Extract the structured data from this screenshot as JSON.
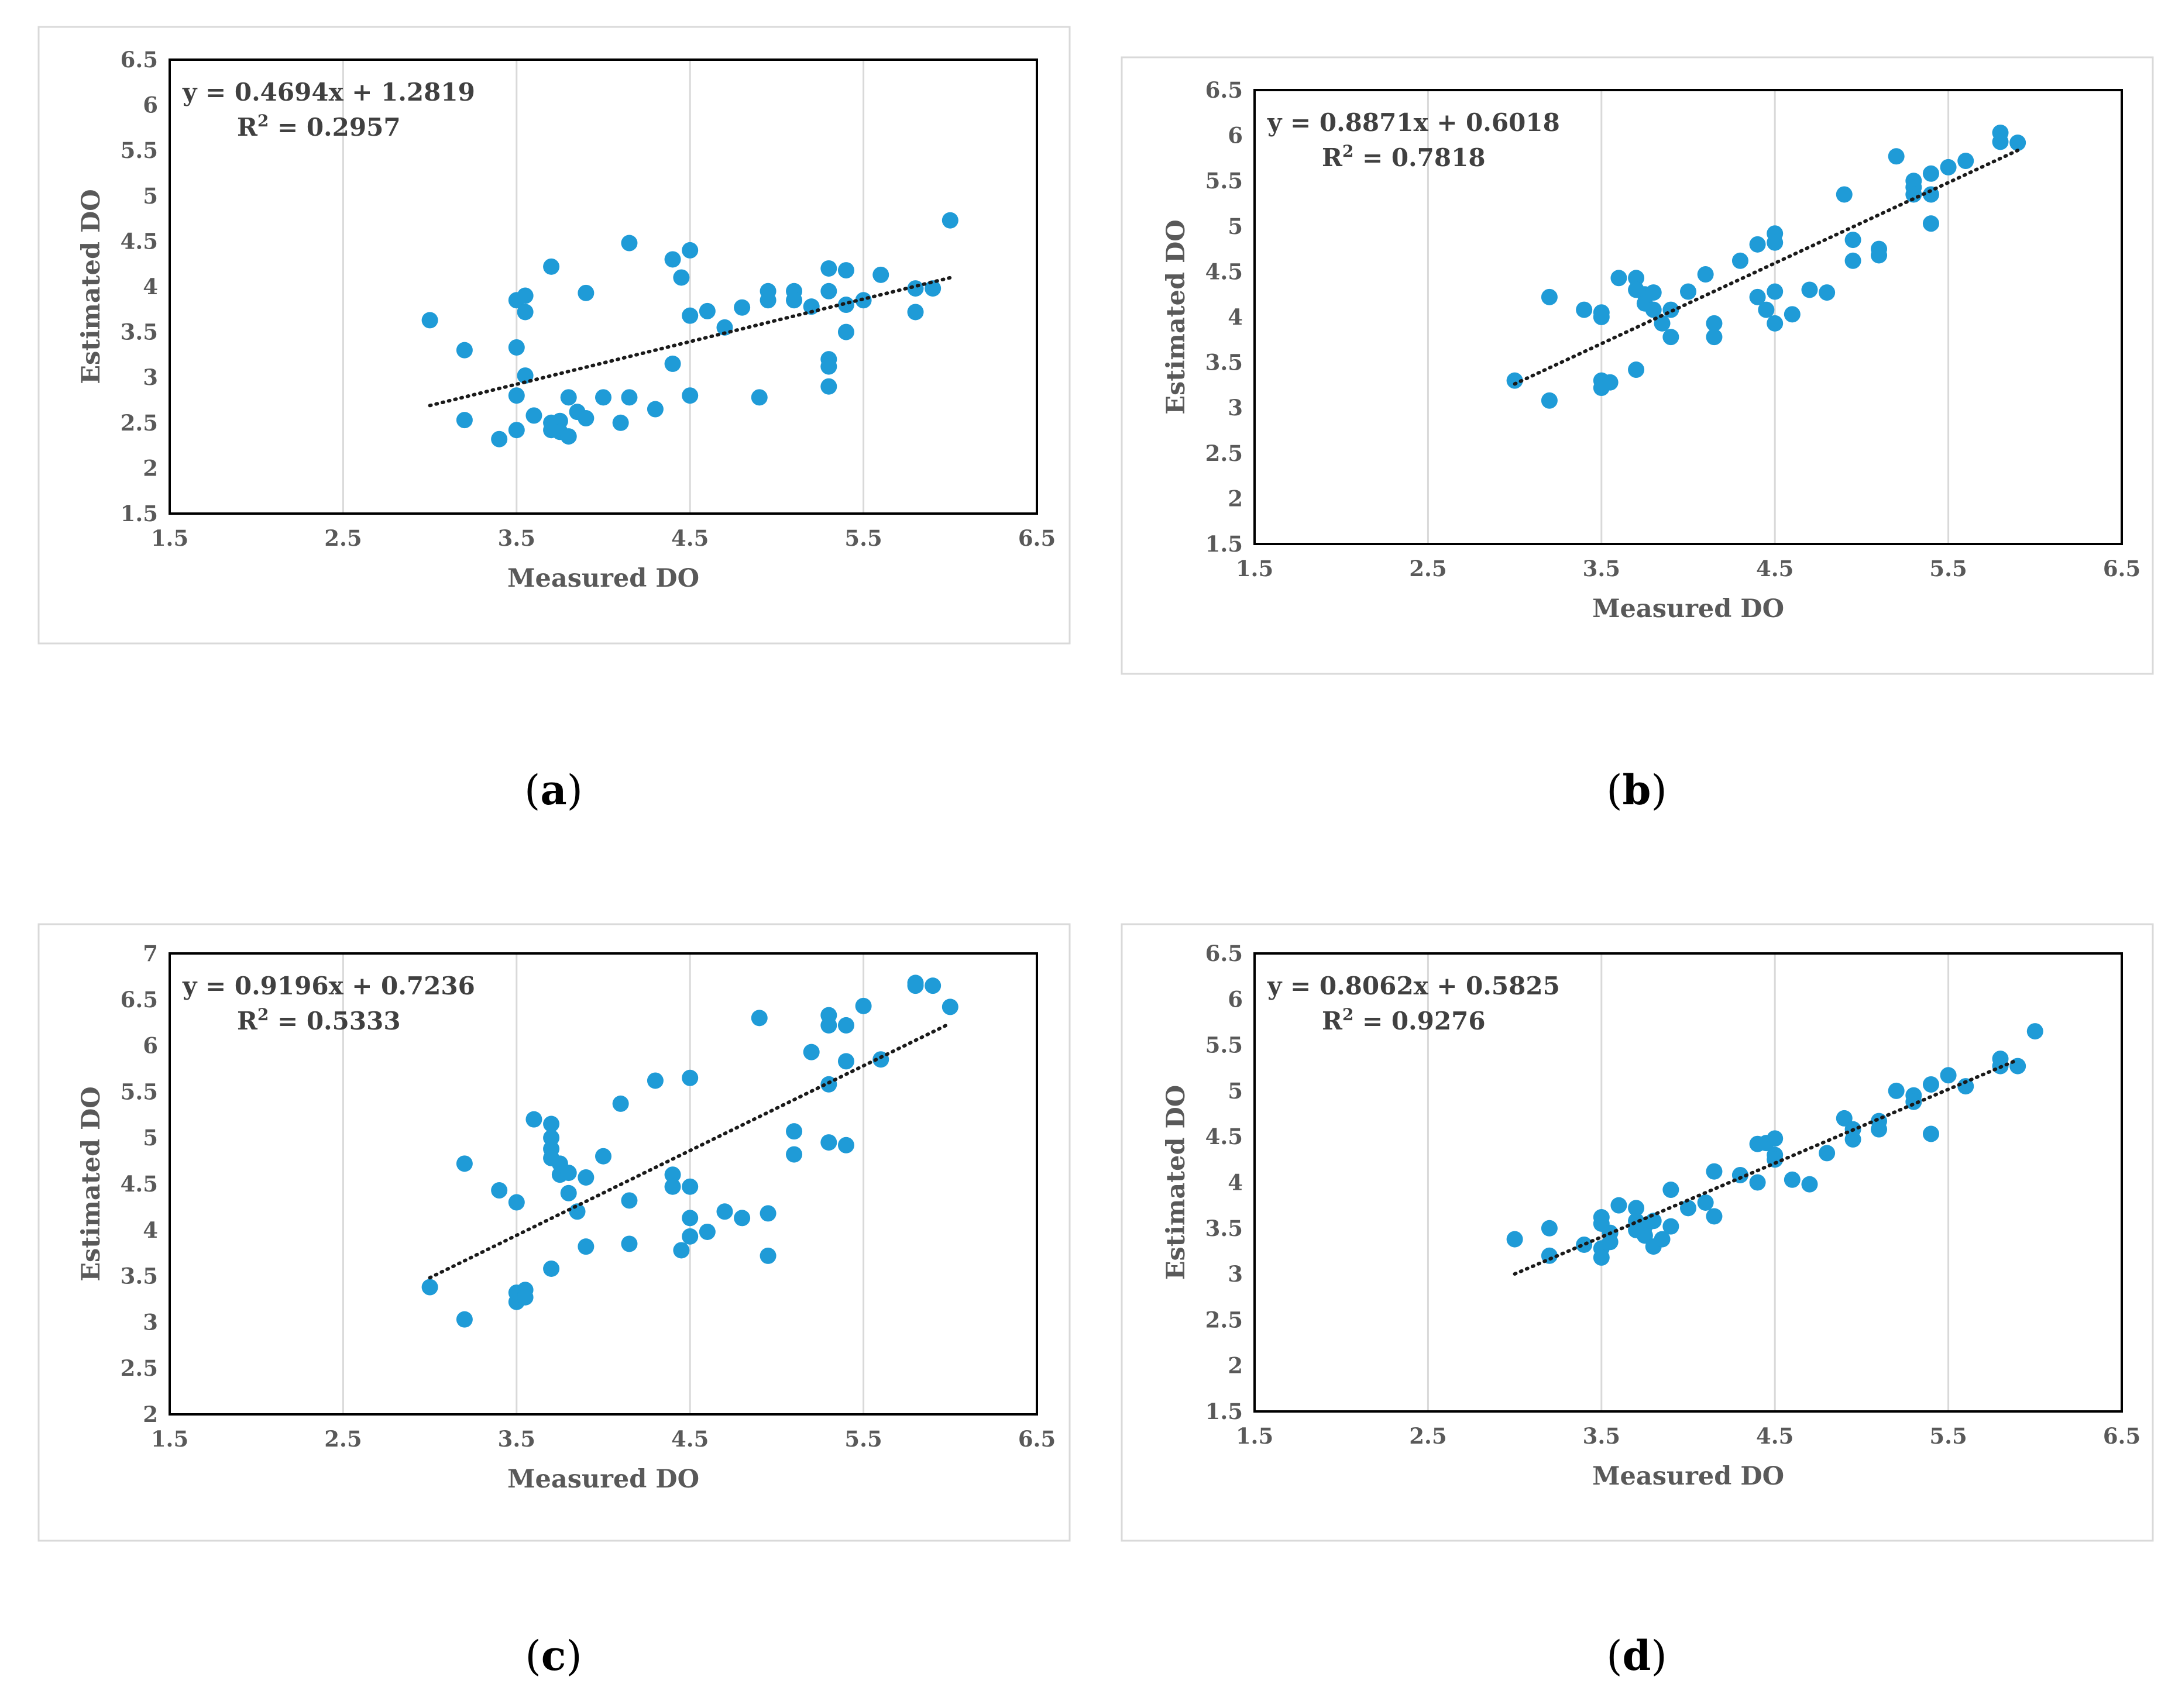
{
  "chart_data": [
    {
      "type": "scatter",
      "panel": "a",
      "caption": "a",
      "equation": "y = 0.4694x + 1.2819",
      "r2_label": "R",
      "r2_sup": "2",
      "r2_value": " = 0.2957",
      "xlabel": "Measured DO",
      "ylabel": "Estimated DO",
      "xlim": [
        1.5,
        6.5
      ],
      "ylim": [
        1.5,
        6.5
      ],
      "xticks": [
        "1.5",
        "2.5",
        "3.5",
        "4.5",
        "5.5",
        "6.5"
      ],
      "yticks": [
        "1.5",
        "2",
        "2.5",
        "3",
        "3.5",
        "4",
        "4.5",
        "5",
        "5.5",
        "6",
        "6.5"
      ],
      "trendline": {
        "slope": 0.4694,
        "intercept": 1.2819,
        "x_range": [
          3.0,
          6.0
        ]
      },
      "points": [
        [
          3.0,
          3.63
        ],
        [
          3.2,
          3.3
        ],
        [
          3.2,
          2.53
        ],
        [
          3.4,
          2.32
        ],
        [
          3.5,
          3.85
        ],
        [
          3.55,
          3.9
        ],
        [
          3.55,
          3.72
        ],
        [
          3.5,
          3.33
        ],
        [
          3.55,
          3.02
        ],
        [
          3.5,
          2.8
        ],
        [
          3.5,
          2.42
        ],
        [
          3.6,
          2.58
        ],
        [
          3.7,
          4.22
        ],
        [
          3.7,
          2.5
        ],
        [
          3.7,
          2.42
        ],
        [
          3.75,
          2.52
        ],
        [
          3.75,
          2.4
        ],
        [
          3.8,
          2.78
        ],
        [
          3.8,
          2.35
        ],
        [
          3.85,
          2.62
        ],
        [
          3.9,
          2.55
        ],
        [
          3.9,
          3.93
        ],
        [
          4.0,
          2.78
        ],
        [
          4.1,
          2.5
        ],
        [
          4.15,
          4.48
        ],
        [
          4.15,
          2.78
        ],
        [
          4.3,
          2.65
        ],
        [
          4.4,
          3.15
        ],
        [
          4.4,
          4.3
        ],
        [
          4.45,
          4.1
        ],
        [
          4.5,
          4.4
        ],
        [
          4.5,
          3.68
        ],
        [
          4.5,
          2.8
        ],
        [
          4.6,
          3.73
        ],
        [
          4.7,
          3.55
        ],
        [
          4.8,
          3.77
        ],
        [
          4.9,
          2.78
        ],
        [
          4.95,
          3.95
        ],
        [
          4.95,
          3.85
        ],
        [
          5.1,
          3.95
        ],
        [
          5.1,
          3.85
        ],
        [
          5.2,
          3.78
        ],
        [
          5.3,
          4.2
        ],
        [
          5.3,
          3.95
        ],
        [
          5.3,
          3.2
        ],
        [
          5.3,
          3.12
        ],
        [
          5.3,
          2.9
        ],
        [
          5.4,
          4.18
        ],
        [
          5.4,
          3.8
        ],
        [
          5.4,
          3.5
        ],
        [
          5.5,
          3.85
        ],
        [
          5.6,
          4.13
        ],
        [
          5.8,
          3.98
        ],
        [
          5.8,
          3.72
        ],
        [
          5.9,
          3.98
        ],
        [
          6.0,
          4.73
        ]
      ]
    },
    {
      "type": "scatter",
      "panel": "b",
      "caption": "b",
      "equation": "y = 0.8871x + 0.6018",
      "r2_label": "R",
      "r2_sup": "2",
      "r2_value": " = 0.7818",
      "xlabel": "Measured DO",
      "ylabel": "Estimated DO",
      "xlim": [
        1.5,
        6.5
      ],
      "ylim": [
        1.5,
        6.5
      ],
      "xticks": [
        "1.5",
        "2.5",
        "3.5",
        "4.5",
        "5.5",
        "6.5"
      ],
      "yticks": [
        "1.5",
        "2",
        "2.5",
        "3",
        "3.5",
        "4",
        "4.5",
        "5",
        "5.5",
        "6",
        "6.5"
      ],
      "trendline": {
        "slope": 0.8871,
        "intercept": 0.6018,
        "x_range": [
          3.0,
          5.9
        ]
      },
      "points": [
        [
          3.0,
          3.3
        ],
        [
          3.2,
          4.22
        ],
        [
          3.2,
          3.08
        ],
        [
          3.4,
          4.08
        ],
        [
          3.5,
          4.05
        ],
        [
          3.5,
          4.0
        ],
        [
          3.5,
          3.3
        ],
        [
          3.5,
          3.22
        ],
        [
          3.55,
          3.28
        ],
        [
          3.6,
          4.43
        ],
        [
          3.7,
          4.43
        ],
        [
          3.7,
          4.3
        ],
        [
          3.7,
          3.42
        ],
        [
          3.75,
          4.25
        ],
        [
          3.75,
          4.15
        ],
        [
          3.8,
          4.27
        ],
        [
          3.8,
          4.08
        ],
        [
          3.85,
          3.93
        ],
        [
          3.9,
          3.78
        ],
        [
          3.9,
          4.08
        ],
        [
          4.0,
          4.28
        ],
        [
          4.1,
          4.47
        ],
        [
          4.15,
          3.93
        ],
        [
          4.15,
          3.78
        ],
        [
          4.3,
          4.62
        ],
        [
          4.4,
          4.8
        ],
        [
          4.4,
          4.22
        ],
        [
          4.45,
          4.08
        ],
        [
          4.5,
          4.92
        ],
        [
          4.5,
          4.82
        ],
        [
          4.5,
          4.28
        ],
        [
          4.5,
          3.93
        ],
        [
          4.6,
          4.03
        ],
        [
          4.7,
          4.3
        ],
        [
          4.8,
          4.27
        ],
        [
          4.9,
          5.35
        ],
        [
          4.95,
          4.85
        ],
        [
          4.95,
          4.62
        ],
        [
          5.1,
          4.75
        ],
        [
          5.1,
          4.68
        ],
        [
          5.2,
          5.77
        ],
        [
          5.3,
          5.5
        ],
        [
          5.3,
          5.43
        ],
        [
          5.3,
          5.35
        ],
        [
          5.4,
          5.58
        ],
        [
          5.4,
          5.35
        ],
        [
          5.4,
          5.03
        ],
        [
          5.5,
          5.65
        ],
        [
          5.6,
          5.72
        ],
        [
          5.8,
          6.03
        ],
        [
          5.8,
          5.93
        ],
        [
          5.9,
          5.92
        ]
      ]
    },
    {
      "type": "scatter",
      "panel": "c",
      "caption": "c",
      "equation": "y = 0.9196x + 0.7236",
      "r2_label": "R",
      "r2_sup": "2",
      "r2_value": " = 0.5333",
      "xlabel": "Measured DO",
      "ylabel": "Estimated DO",
      "xlim": [
        1.5,
        6.5
      ],
      "ylim": [
        2,
        7
      ],
      "xticks": [
        "1.5",
        "2.5",
        "3.5",
        "4.5",
        "5.5",
        "6.5"
      ],
      "yticks": [
        "2",
        "2.5",
        "3",
        "3.5",
        "4",
        "4.5",
        "5",
        "5.5",
        "6",
        "6.5",
        "7"
      ],
      "trendline": {
        "slope": 0.9196,
        "intercept": 0.7236,
        "x_range": [
          3.0,
          6.0
        ]
      },
      "points": [
        [
          3.0,
          3.38
        ],
        [
          3.2,
          4.72
        ],
        [
          3.2,
          3.03
        ],
        [
          3.4,
          4.43
        ],
        [
          3.5,
          4.3
        ],
        [
          3.5,
          3.32
        ],
        [
          3.5,
          3.22
        ],
        [
          3.55,
          3.35
        ],
        [
          3.55,
          3.27
        ],
        [
          3.6,
          5.2
        ],
        [
          3.7,
          5.15
        ],
        [
          3.7,
          5.0
        ],
        [
          3.7,
          4.88
        ],
        [
          3.7,
          4.78
        ],
        [
          3.7,
          3.58
        ],
        [
          3.75,
          4.72
        ],
        [
          3.75,
          4.6
        ],
        [
          3.8,
          4.62
        ],
        [
          3.8,
          4.4
        ],
        [
          3.85,
          4.2
        ],
        [
          3.9,
          4.57
        ],
        [
          3.9,
          3.82
        ],
        [
          4.0,
          4.8
        ],
        [
          4.1,
          5.37
        ],
        [
          4.15,
          4.32
        ],
        [
          4.15,
          3.85
        ],
        [
          4.3,
          5.62
        ],
        [
          4.4,
          4.6
        ],
        [
          4.4,
          4.47
        ],
        [
          4.45,
          3.78
        ],
        [
          4.5,
          5.65
        ],
        [
          4.5,
          4.47
        ],
        [
          4.5,
          4.13
        ],
        [
          4.5,
          3.93
        ],
        [
          4.6,
          3.98
        ],
        [
          4.7,
          4.2
        ],
        [
          4.8,
          4.13
        ],
        [
          4.9,
          6.3
        ],
        [
          4.95,
          4.18
        ],
        [
          4.95,
          3.72
        ],
        [
          5.1,
          5.07
        ],
        [
          5.1,
          4.82
        ],
        [
          5.2,
          5.93
        ],
        [
          5.3,
          6.33
        ],
        [
          5.3,
          6.22
        ],
        [
          5.3,
          5.58
        ],
        [
          5.3,
          4.95
        ],
        [
          5.4,
          6.22
        ],
        [
          5.4,
          5.83
        ],
        [
          5.4,
          4.92
        ],
        [
          5.5,
          6.43
        ],
        [
          5.6,
          5.85
        ],
        [
          5.8,
          6.68
        ],
        [
          5.8,
          6.65
        ],
        [
          5.9,
          6.65
        ],
        [
          6.0,
          6.42
        ]
      ]
    },
    {
      "type": "scatter",
      "panel": "d",
      "caption": "d",
      "equation": "y = 0.8062x + 0.5825",
      "r2_label": "R",
      "r2_sup": "2",
      "r2_value": " = 0.9276",
      "xlabel": "Measured DO",
      "ylabel": "Estimated DO",
      "xlim": [
        1.5,
        6.5
      ],
      "ylim": [
        1.5,
        6.5
      ],
      "xticks": [
        "1.5",
        "2.5",
        "3.5",
        "4.5",
        "5.5",
        "6.5"
      ],
      "yticks": [
        "1.5",
        "2",
        "2.5",
        "3",
        "3.5",
        "4",
        "4.5",
        "5",
        "5.5",
        "6",
        "6.5"
      ],
      "trendline": {
        "slope": 0.8062,
        "intercept": 0.5825,
        "x_range": [
          3.0,
          5.9
        ]
      },
      "points": [
        [
          3.0,
          3.38
        ],
        [
          3.2,
          3.5
        ],
        [
          3.2,
          3.2
        ],
        [
          3.4,
          3.32
        ],
        [
          3.5,
          3.62
        ],
        [
          3.5,
          3.55
        ],
        [
          3.5,
          3.28
        ],
        [
          3.5,
          3.18
        ],
        [
          3.55,
          3.45
        ],
        [
          3.55,
          3.35
        ],
        [
          3.6,
          3.75
        ],
        [
          3.7,
          3.72
        ],
        [
          3.7,
          3.58
        ],
        [
          3.7,
          3.48
        ],
        [
          3.75,
          3.52
        ],
        [
          3.75,
          3.42
        ],
        [
          3.8,
          3.58
        ],
        [
          3.8,
          3.3
        ],
        [
          3.85,
          3.38
        ],
        [
          3.9,
          3.92
        ],
        [
          3.9,
          3.52
        ],
        [
          4.0,
          3.72
        ],
        [
          4.1,
          3.78
        ],
        [
          4.15,
          4.12
        ],
        [
          4.15,
          3.63
        ],
        [
          4.3,
          4.08
        ],
        [
          4.4,
          4.42
        ],
        [
          4.4,
          4.0
        ],
        [
          4.45,
          4.43
        ],
        [
          4.5,
          4.48
        ],
        [
          4.5,
          4.3
        ],
        [
          4.5,
          4.25
        ],
        [
          4.6,
          4.03
        ],
        [
          4.7,
          3.98
        ],
        [
          4.8,
          4.32
        ],
        [
          4.9,
          4.7
        ],
        [
          4.95,
          4.58
        ],
        [
          4.95,
          4.47
        ],
        [
          5.1,
          4.67
        ],
        [
          5.1,
          4.58
        ],
        [
          5.2,
          5.0
        ],
        [
          5.3,
          4.95
        ],
        [
          5.3,
          4.88
        ],
        [
          5.4,
          5.07
        ],
        [
          5.4,
          4.53
        ],
        [
          5.5,
          5.17
        ],
        [
          5.6,
          5.05
        ],
        [
          5.8,
          5.35
        ],
        [
          5.8,
          5.27
        ],
        [
          5.9,
          5.27
        ],
        [
          6.0,
          5.65
        ]
      ]
    }
  ]
}
